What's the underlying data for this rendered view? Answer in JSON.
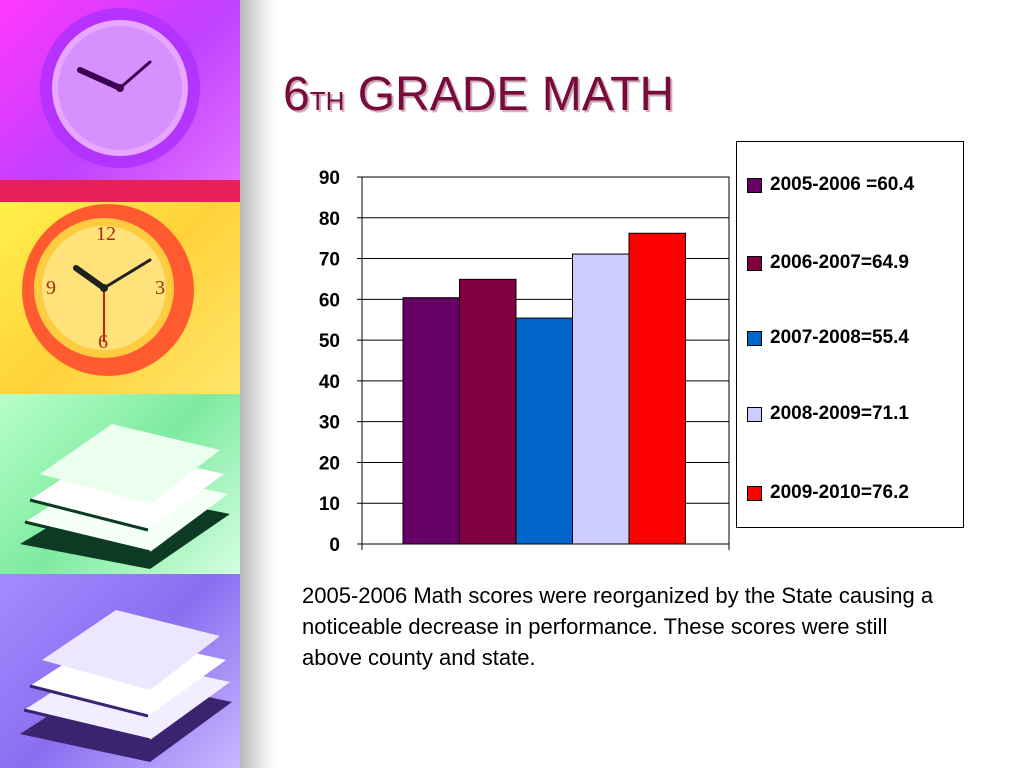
{
  "slide": {
    "title_main": "6",
    "title_sup": "TH",
    "title_rest": " GRADE MATH",
    "note": "2005-2006 Math scores were reorganized by the State causing a noticeable decrease in performance.  These scores were still above county and state."
  },
  "decor": {
    "panels": [
      "clock-icon",
      "clock-icon",
      "book-stack-icon",
      "book-stack-icon"
    ],
    "colors": [
      "#ff38ff",
      "#ffd23a",
      "#7eeaa0",
      "#8a6ef0"
    ]
  },
  "chart_data": {
    "type": "bar",
    "title": "",
    "xlabel": "",
    "ylabel": "",
    "ylim": [
      0,
      90
    ],
    "yticks": [
      0,
      10,
      20,
      30,
      40,
      50,
      60,
      70,
      80,
      90
    ],
    "grid": true,
    "legend_position": "right",
    "series": [
      {
        "name": "2005-2006 =60.4",
        "value": 60.4,
        "color": "#660066"
      },
      {
        "name": "2006-2007=64.9",
        "value": 64.9,
        "color": "#800040"
      },
      {
        "name": "2007-2008=55.4",
        "value": 55.4,
        "color": "#0066cc"
      },
      {
        "name": "2008-2009=71.1",
        "value": 71.1,
        "color": "#ccccff"
      },
      {
        "name": "2009-2010=76.2",
        "value": 76.2,
        "color": "#ff0000"
      }
    ]
  }
}
